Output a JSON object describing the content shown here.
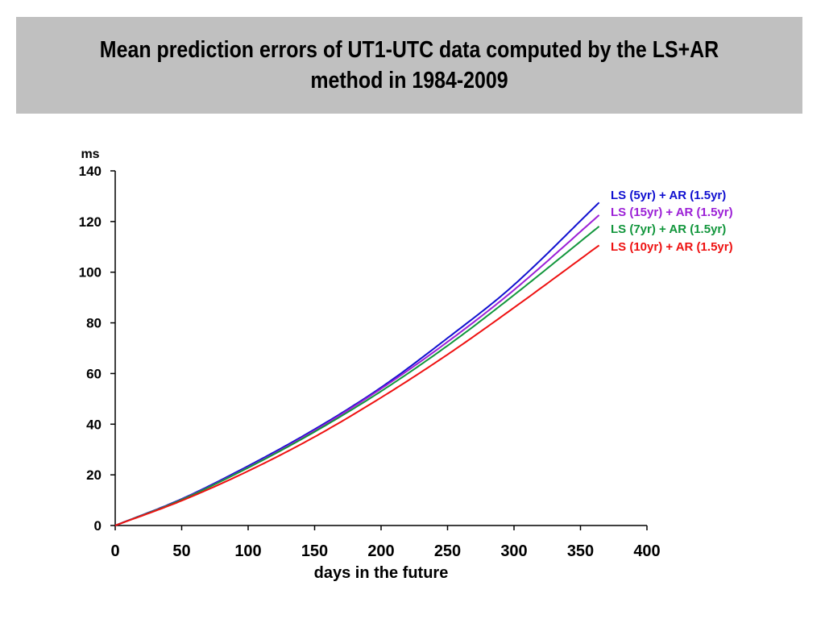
{
  "chart_data": {
    "type": "line",
    "title": "Mean prediction errors of UT1-UTC data computed by the LS+AR method in 1984-2009",
    "xlabel": "days in the future",
    "ylabel": "ms",
    "xlim": [
      0,
      400
    ],
    "ylim": [
      0,
      140
    ],
    "x_ticks": [
      0,
      50,
      100,
      150,
      200,
      250,
      300,
      350,
      400
    ],
    "y_ticks": [
      0,
      20,
      40,
      60,
      80,
      100,
      120,
      140
    ],
    "grid": false,
    "legend": "labels at line ends, right",
    "x": [
      0,
      50,
      100,
      150,
      200,
      250,
      300,
      365
    ],
    "series": [
      {
        "name": "LS (5yr) + AR (1.5yr)",
        "color": "#1010d0",
        "values": [
          0,
          10.5,
          23.5,
          38,
          54.5,
          74,
          95,
          128
        ]
      },
      {
        "name": "LS (15yr) + AR (1.5yr)",
        "color": "#9b1fd6",
        "values": [
          0,
          10.3,
          23,
          37.5,
          54,
          72.5,
          93,
          123
        ]
      },
      {
        "name": "LS (7yr) + AR (1.5yr)",
        "color": "#12963c",
        "values": [
          0,
          10.2,
          22.8,
          37,
          53,
          71,
          91,
          118.5
        ]
      },
      {
        "name": "LS (10yr) + AR (1.5yr)",
        "color": "#ee1111",
        "values": [
          0,
          9.8,
          21.5,
          35,
          50.5,
          67.5,
          86,
          111
        ]
      }
    ]
  }
}
